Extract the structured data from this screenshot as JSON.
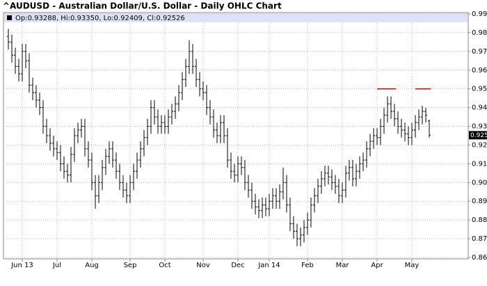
{
  "chart_data": {
    "type": "ohlc",
    "title": "^AUDUSD - Australian Dollar/U.S. Dollar - Daily OHLC Chart",
    "legend": "Op:0.93288, Hi:0.93350, Lo:0.92409, Cl:0.92526",
    "bar_color": "#000000",
    "grid": true,
    "ylim": [
      0.86,
      0.99
    ],
    "yticks": [
      {
        "value": 0.86,
        "label": "0.86000"
      },
      {
        "value": 0.87,
        "label": "0.87000"
      },
      {
        "value": 0.88,
        "label": "0.88000"
      },
      {
        "value": 0.89,
        "label": "0.89000"
      },
      {
        "value": 0.9,
        "label": "0.90000"
      },
      {
        "value": 0.91,
        "label": "0.91000"
      },
      {
        "value": 0.92,
        "label": "0.92000"
      },
      {
        "value": 0.93,
        "label": "0.93000"
      },
      {
        "value": 0.94,
        "label": "0.94000"
      },
      {
        "value": 0.95,
        "label": "0.95000"
      },
      {
        "value": 0.96,
        "label": "0.96000"
      },
      {
        "value": 0.97,
        "label": "0.97000"
      },
      {
        "value": 0.98,
        "label": "0.98000"
      },
      {
        "value": 0.99,
        "label": "0.99000"
      }
    ],
    "categories": [
      null,
      null,
      null,
      null,
      "Jun 13",
      null,
      null,
      null,
      null,
      null,
      null,
      null,
      null,
      null,
      "Jul",
      null,
      null,
      null,
      null,
      null,
      null,
      null,
      null,
      null,
      "Aug",
      null,
      null,
      null,
      null,
      null,
      null,
      null,
      null,
      null,
      null,
      "Sep",
      null,
      null,
      null,
      null,
      null,
      null,
      null,
      null,
      null,
      "Oct",
      null,
      null,
      null,
      null,
      null,
      null,
      null,
      null,
      null,
      null,
      "Nov",
      null,
      null,
      null,
      null,
      null,
      null,
      null,
      null,
      null,
      "Dec",
      null,
      null,
      null,
      null,
      null,
      null,
      null,
      null,
      "Jan 14",
      null,
      null,
      null,
      null,
      null,
      null,
      null,
      null,
      null,
      null,
      "Feb",
      null,
      null,
      null,
      null,
      null,
      null,
      null,
      null,
      null,
      "Mar",
      null,
      null,
      null,
      null,
      null,
      null,
      null,
      null,
      null,
      "Apr",
      null,
      null,
      null,
      null,
      null,
      null,
      null,
      null,
      null,
      "May",
      null,
      null,
      null,
      null,
      null
    ],
    "open": [
      0.978,
      0.975,
      0.968,
      0.962,
      0.958,
      0.97,
      0.965,
      0.952,
      0.948,
      0.944,
      0.94,
      0.93,
      0.925,
      0.921,
      0.918,
      0.916,
      0.91,
      0.906,
      0.904,
      0.915,
      0.925,
      0.928,
      0.93,
      0.918,
      0.912,
      0.9,
      0.893,
      0.9,
      0.908,
      0.914,
      0.918,
      0.912,
      0.906,
      0.9,
      0.896,
      0.893,
      0.9,
      0.906,
      0.912,
      0.918,
      0.924,
      0.93,
      0.94,
      0.935,
      0.93,
      0.932,
      0.93,
      0.935,
      0.938,
      0.942,
      0.948,
      0.955,
      0.962,
      0.97,
      0.962,
      0.955,
      0.95,
      0.948,
      0.94,
      0.935,
      0.928,
      0.925,
      0.932,
      0.925,
      0.912,
      0.906,
      0.904,
      0.91,
      0.908,
      0.9,
      0.896,
      0.89,
      0.887,
      0.885,
      0.888,
      0.886,
      0.89,
      0.893,
      0.89,
      0.895,
      0.9,
      0.888,
      0.878,
      0.874,
      0.87,
      0.872,
      0.876,
      0.88,
      0.888,
      0.893,
      0.898,
      0.902,
      0.905,
      0.903,
      0.9,
      0.898,
      0.893,
      0.896,
      0.905,
      0.908,
      0.902,
      0.906,
      0.91,
      0.912,
      0.918,
      0.922,
      0.925,
      0.924,
      0.93,
      0.936,
      0.942,
      0.938,
      0.934,
      0.93,
      0.928,
      0.926,
      0.924,
      0.928,
      0.932,
      0.935,
      0.938,
      0.93288
    ],
    "high": [
      0.982,
      0.979,
      0.972,
      0.966,
      0.974,
      0.974,
      0.969,
      0.956,
      0.952,
      0.948,
      0.944,
      0.934,
      0.929,
      0.925,
      0.922,
      0.92,
      0.914,
      0.91,
      0.919,
      0.929,
      0.932,
      0.934,
      0.934,
      0.922,
      0.916,
      0.904,
      0.904,
      0.912,
      0.918,
      0.922,
      0.922,
      0.916,
      0.91,
      0.904,
      0.9,
      0.904,
      0.91,
      0.916,
      0.922,
      0.928,
      0.934,
      0.944,
      0.944,
      0.939,
      0.936,
      0.936,
      0.939,
      0.942,
      0.946,
      0.952,
      0.959,
      0.966,
      0.976,
      0.974,
      0.966,
      0.959,
      0.954,
      0.952,
      0.944,
      0.939,
      0.932,
      0.936,
      0.936,
      0.929,
      0.916,
      0.91,
      0.914,
      0.914,
      0.912,
      0.904,
      0.9,
      0.894,
      0.891,
      0.892,
      0.892,
      0.894,
      0.897,
      0.897,
      0.899,
      0.908,
      0.904,
      0.892,
      0.882,
      0.878,
      0.876,
      0.88,
      0.884,
      0.892,
      0.897,
      0.902,
      0.906,
      0.909,
      0.909,
      0.907,
      0.904,
      0.902,
      0.9,
      0.909,
      0.912,
      0.912,
      0.91,
      0.914,
      0.916,
      0.922,
      0.926,
      0.929,
      0.929,
      0.934,
      0.94,
      0.946,
      0.946,
      0.942,
      0.938,
      0.934,
      0.932,
      0.93,
      0.932,
      0.936,
      0.939,
      0.941,
      0.94,
      0.9335
    ],
    "low": [
      0.971,
      0.964,
      0.958,
      0.954,
      0.954,
      0.961,
      0.948,
      0.944,
      0.94,
      0.936,
      0.926,
      0.921,
      0.917,
      0.914,
      0.912,
      0.906,
      0.902,
      0.9,
      0.9,
      0.911,
      0.921,
      0.924,
      0.914,
      0.908,
      0.896,
      0.886,
      0.889,
      0.896,
      0.904,
      0.91,
      0.908,
      0.902,
      0.896,
      0.892,
      0.889,
      0.889,
      0.896,
      0.902,
      0.908,
      0.914,
      0.92,
      0.926,
      0.931,
      0.926,
      0.926,
      0.926,
      0.926,
      0.931,
      0.934,
      0.938,
      0.944,
      0.951,
      0.958,
      0.958,
      0.951,
      0.946,
      0.944,
      0.936,
      0.931,
      0.924,
      0.921,
      0.921,
      0.921,
      0.908,
      0.902,
      0.9,
      0.9,
      0.904,
      0.896,
      0.892,
      0.886,
      0.883,
      0.881,
      0.881,
      0.882,
      0.882,
      0.886,
      0.886,
      0.886,
      0.891,
      0.884,
      0.874,
      0.87,
      0.866,
      0.866,
      0.868,
      0.872,
      0.876,
      0.884,
      0.889,
      0.894,
      0.898,
      0.899,
      0.896,
      0.894,
      0.889,
      0.889,
      0.892,
      0.901,
      0.898,
      0.898,
      0.902,
      0.906,
      0.908,
      0.914,
      0.918,
      0.92,
      0.92,
      0.926,
      0.932,
      0.934,
      0.93,
      0.926,
      0.924,
      0.922,
      0.92,
      0.92,
      0.924,
      0.928,
      0.931,
      0.932,
      0.92409
    ],
    "close": [
      0.975,
      0.968,
      0.962,
      0.958,
      0.97,
      0.965,
      0.952,
      0.948,
      0.944,
      0.94,
      0.93,
      0.925,
      0.921,
      0.918,
      0.916,
      0.91,
      0.906,
      0.904,
      0.915,
      0.925,
      0.928,
      0.93,
      0.918,
      0.912,
      0.9,
      0.893,
      0.9,
      0.908,
      0.914,
      0.918,
      0.912,
      0.906,
      0.9,
      0.896,
      0.893,
      0.9,
      0.906,
      0.912,
      0.918,
      0.924,
      0.93,
      0.94,
      0.935,
      0.93,
      0.932,
      0.93,
      0.935,
      0.938,
      0.942,
      0.948,
      0.955,
      0.962,
      0.97,
      0.962,
      0.955,
      0.95,
      0.948,
      0.94,
      0.935,
      0.928,
      0.925,
      0.932,
      0.925,
      0.912,
      0.906,
      0.904,
      0.91,
      0.908,
      0.9,
      0.896,
      0.89,
      0.887,
      0.885,
      0.888,
      0.886,
      0.89,
      0.893,
      0.89,
      0.895,
      0.9,
      0.888,
      0.878,
      0.874,
      0.87,
      0.872,
      0.876,
      0.88,
      0.888,
      0.893,
      0.898,
      0.902,
      0.905,
      0.903,
      0.9,
      0.898,
      0.893,
      0.896,
      0.905,
      0.908,
      0.902,
      0.906,
      0.91,
      0.912,
      0.918,
      0.922,
      0.925,
      0.924,
      0.93,
      0.936,
      0.942,
      0.938,
      0.934,
      0.93,
      0.928,
      0.926,
      0.924,
      0.928,
      0.932,
      0.935,
      0.938,
      0.936,
      0.92526
    ],
    "resistance": {
      "color": "#dd0000",
      "values": [
        null,
        null,
        null,
        null,
        null,
        null,
        null,
        null,
        null,
        null,
        null,
        null,
        null,
        null,
        null,
        null,
        null,
        null,
        null,
        null,
        null,
        null,
        null,
        null,
        null,
        null,
        null,
        null,
        null,
        null,
        null,
        null,
        null,
        null,
        null,
        null,
        null,
        null,
        null,
        null,
        null,
        null,
        null,
        null,
        null,
        null,
        null,
        null,
        null,
        null,
        null,
        null,
        null,
        null,
        null,
        null,
        null,
        null,
        null,
        null,
        null,
        null,
        null,
        null,
        null,
        null,
        null,
        null,
        null,
        null,
        null,
        null,
        null,
        null,
        null,
        null,
        null,
        null,
        null,
        null,
        null,
        null,
        null,
        null,
        null,
        null,
        null,
        null,
        null,
        null,
        null,
        null,
        null,
        null,
        null,
        null,
        null,
        null,
        null,
        null,
        null,
        null,
        null,
        null,
        null,
        null,
        0.95,
        0.95,
        0.95,
        0.95,
        0.95,
        0.95,
        null,
        null,
        null,
        null,
        null,
        0.95,
        0.95,
        0.95,
        0.95,
        0.95
      ]
    }
  }
}
